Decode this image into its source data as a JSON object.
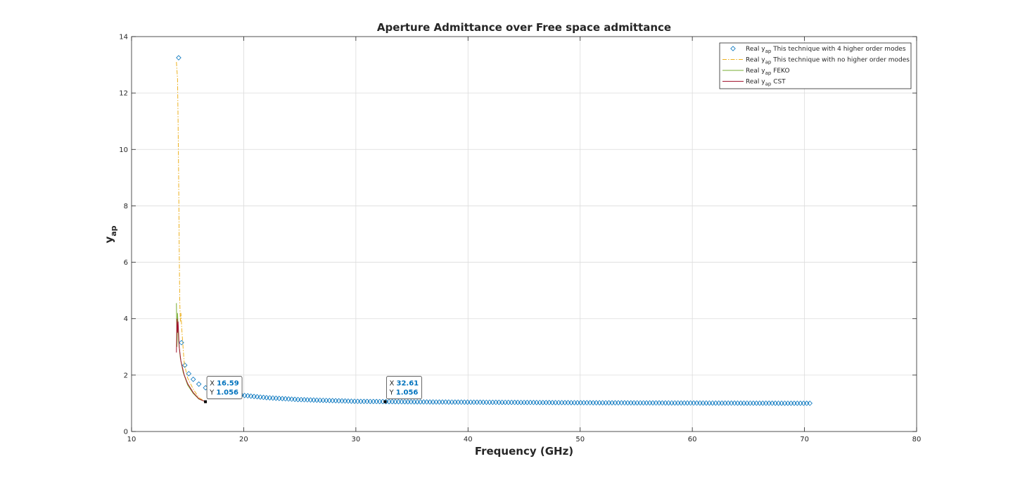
{
  "chart_data": {
    "type": "line",
    "title": "Aperture Admittance over Free space admittance",
    "xlabel": "Frequency (GHz)",
    "ylabel_main": "y",
    "ylabel_sub": "ap",
    "xlim": [
      10,
      80
    ],
    "ylim": [
      0,
      14
    ],
    "xticks": [
      "10",
      "20",
      "30",
      "40",
      "50",
      "60",
      "70",
      "80"
    ],
    "yticks": [
      "0",
      "2",
      "4",
      "6",
      "8",
      "10",
      "12",
      "14"
    ],
    "grid": true,
    "legend_position": "top-right",
    "series": [
      {
        "legend_prefix": "Real y",
        "legend_sub": "ap",
        "legend_suffix": " This technique with 4 higher order modes",
        "style": "markers-diamond",
        "color": "#0072bd",
        "x_start": 14.2,
        "x_end": 70.7,
        "x_step": 0.28,
        "points": [
          [
            14.2,
            13.25
          ],
          [
            14.45,
            3.15
          ],
          [
            14.75,
            2.35
          ],
          [
            15.1,
            2.05
          ],
          [
            15.5,
            1.85
          ],
          [
            16.0,
            1.68
          ],
          [
            16.6,
            1.55
          ],
          [
            17.5,
            1.45
          ],
          [
            18.5,
            1.36
          ],
          [
            20.0,
            1.28
          ],
          [
            22.0,
            1.2
          ],
          [
            25.0,
            1.13
          ],
          [
            30.0,
            1.07
          ],
          [
            35.0,
            1.05
          ],
          [
            40.0,
            1.04
          ],
          [
            50.0,
            1.02
          ],
          [
            60.0,
            1.01
          ],
          [
            70.7,
            1.0
          ]
        ]
      },
      {
        "legend_prefix": "Real y",
        "legend_sub": "ap",
        "legend_suffix": " This technique with no higher order modes",
        "style": "dash-dot",
        "color": "#edb120",
        "points": [
          [
            14.0,
            13.1
          ],
          [
            14.1,
            12.5
          ],
          [
            14.15,
            11.0
          ],
          [
            14.2,
            9.0
          ],
          [
            14.25,
            6.5
          ],
          [
            14.3,
            4.6
          ],
          [
            14.35,
            3.9
          ],
          [
            14.4,
            4.2
          ],
          [
            14.5,
            3.5
          ],
          [
            14.7,
            2.4
          ],
          [
            15.0,
            1.9
          ],
          [
            15.5,
            1.5
          ],
          [
            16.0,
            1.2
          ],
          [
            16.59,
            1.056
          ]
        ]
      },
      {
        "legend_prefix": "Real y",
        "legend_sub": "ap",
        "legend_suffix": " FEKO",
        "style": "solid",
        "color": "#77ac30",
        "points": [
          [
            14.0,
            4.55
          ],
          [
            14.05,
            3.0
          ],
          [
            14.1,
            4.2
          ],
          [
            14.2,
            3.2
          ],
          [
            14.35,
            2.6
          ],
          [
            14.6,
            2.1
          ],
          [
            15.0,
            1.65
          ],
          [
            15.5,
            1.35
          ],
          [
            16.0,
            1.15
          ],
          [
            16.59,
            1.056
          ]
        ]
      },
      {
        "legend_prefix": "Real y",
        "legend_sub": "ap",
        "legend_suffix": " CST",
        "style": "solid",
        "color": "#a2142f",
        "points": [
          [
            14.0,
            2.8
          ],
          [
            14.05,
            4.0
          ],
          [
            14.1,
            3.5
          ],
          [
            14.15,
            3.9
          ],
          [
            14.25,
            3.0
          ],
          [
            14.4,
            2.5
          ],
          [
            14.7,
            2.0
          ],
          [
            15.0,
            1.7
          ],
          [
            15.5,
            1.38
          ],
          [
            16.0,
            1.16
          ],
          [
            16.59,
            1.056
          ]
        ]
      }
    ],
    "datatips": [
      {
        "x_label": "X",
        "x_value": "16.59",
        "y_label": "Y",
        "y_value": "1.056",
        "x": 16.59,
        "y": 1.056
      },
      {
        "x_label": "X",
        "x_value": "32.61",
        "y_label": "Y",
        "y_value": "1.056",
        "x": 32.61,
        "y": 1.056
      }
    ]
  }
}
